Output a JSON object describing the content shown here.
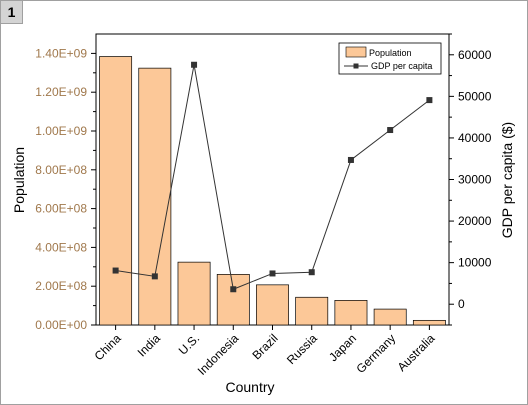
{
  "window": {
    "tab_label": "1"
  },
  "chart_data": {
    "type": "bar",
    "categories": [
      "China",
      "India",
      "U.S.",
      "Indonesia",
      "Brazil",
      "Russia",
      "Japan",
      "Germany",
      "Australia"
    ],
    "xlabel": "Country",
    "ylabel": "Population",
    "y2label": "GDP per capita ($)",
    "ylim": [
      0,
      1500000000
    ],
    "y_ticks": [
      "0.00E+00",
      "2.00E+08",
      "4.00E+08",
      "6.00E+08",
      "8.00E+08",
      "1.00E+09",
      "1.20E+09",
      "1.40E+09"
    ],
    "y2lim": [
      -5000,
      65000
    ],
    "y2_ticks": [
      "0",
      "10000",
      "20000",
      "30000",
      "40000",
      "50000",
      "60000"
    ],
    "series": [
      {
        "name": "Population",
        "type": "bar",
        "axis": "left",
        "color": "#fcc898",
        "values": [
          1384000000,
          1324000000,
          324000000,
          261000000,
          207000000,
          143000000,
          127000000,
          82000000,
          24000000
        ]
      },
      {
        "name": "GDP per capita",
        "type": "line",
        "axis": "right",
        "color": "#333333",
        "values": [
          8100,
          6700,
          57600,
          3600,
          7400,
          7700,
          34700,
          41900,
          49100
        ]
      }
    ],
    "legend_position": "top-right",
    "grid": false
  }
}
